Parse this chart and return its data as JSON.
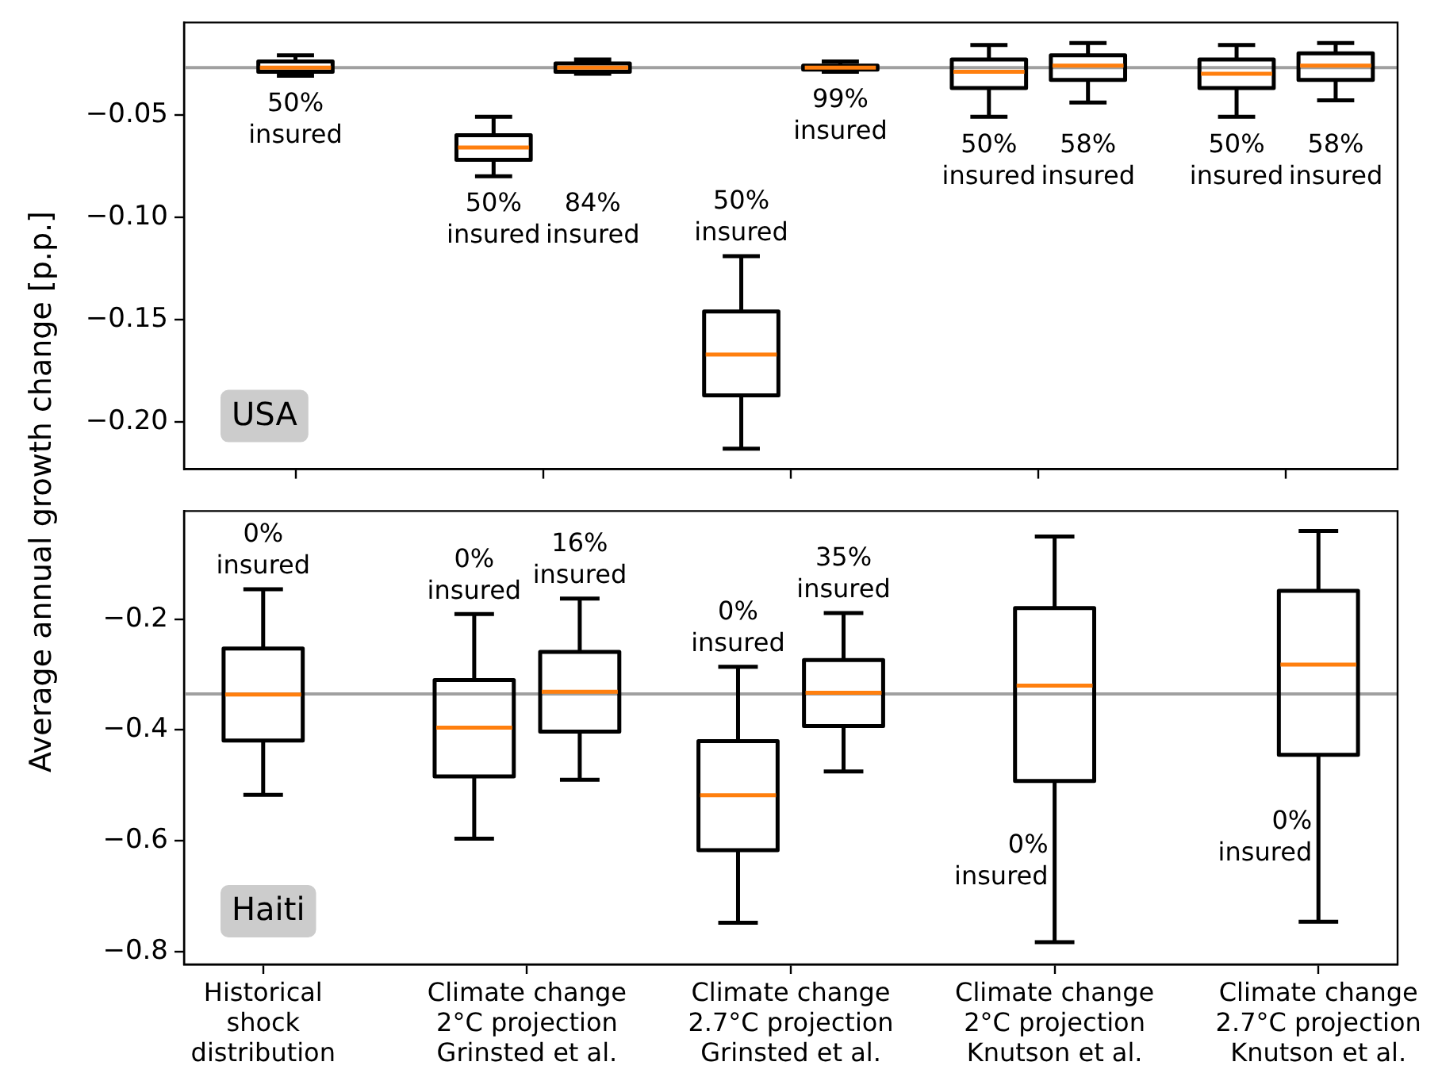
{
  "chart_data": [
    {
      "type": "box",
      "ylabel": "Average annual growth change [p.p.]",
      "categories": [
        null,
        null,
        null,
        null,
        null
      ],
      "ylim": [
        -0.223,
        -0.005
      ],
      "yticks": [
        {
          "value": -0.05,
          "label": "−0.05"
        },
        {
          "value": -0.1,
          "label": "−0.10"
        },
        {
          "value": -0.15,
          "label": "−0.15"
        },
        {
          "value": -0.2,
          "label": "−0.20"
        }
      ],
      "tick_labels": "y",
      "grid": false,
      "ref_lines": [
        {
          "axis": "y",
          "value": -0.027,
          "color": "#a0a0a0"
        }
      ],
      "annotations": [
        "USA"
      ],
      "series": [
        {
          "color": "#000000",
          "value_labels": [
            "50% insured",
            "50% insured",
            "50% insured",
            "50% insured",
            "50% insured"
          ],
          "boxes": [
            {
              "low": -0.031,
              "q1": -0.029,
              "median": -0.027,
              "q3": -0.024,
              "high": -0.021
            },
            {
              "low": -0.08,
              "q1": -0.072,
              "median": -0.066,
              "q3": -0.06,
              "high": -0.051
            },
            {
              "low": -0.213,
              "q1": -0.187,
              "median": -0.167,
              "q3": -0.146,
              "high": -0.119
            },
            {
              "low": -0.051,
              "q1": -0.037,
              "median": -0.029,
              "q3": -0.023,
              "high": -0.016
            },
            {
              "low": -0.051,
              "q1": -0.037,
              "median": -0.03,
              "q3": -0.023,
              "high": -0.016
            }
          ]
        },
        {
          "color": "#000000",
          "value_labels": [
            null,
            "84% insured",
            "99% insured",
            "58% insured",
            "58% insured"
          ],
          "boxes": [
            null,
            {
              "low": -0.03,
              "q1": -0.029,
              "median": -0.027,
              "q3": -0.025,
              "high": -0.023
            },
            {
              "low": -0.029,
              "q1": -0.028,
              "median": -0.027,
              "q3": -0.026,
              "high": -0.024
            },
            {
              "low": -0.044,
              "q1": -0.033,
              "median": -0.026,
              "q3": -0.021,
              "high": -0.015
            },
            {
              "low": -0.043,
              "q1": -0.033,
              "median": -0.026,
              "q3": -0.02,
              "high": -0.015
            }
          ]
        }
      ]
    },
    {
      "type": "box",
      "categories": [
        "Historical\nshock\ndistribution",
        "Climate change\n2°C projection\nGrinsted et al.",
        "Climate change\n2.7°C projection\nGrinsted et al.",
        "Climate change\n2°C projection\nKnutson et al.",
        "Climate change\n2.7°C projection\nKnutson et al."
      ],
      "ylim": [
        -0.823,
        -0.005
      ],
      "yticks": [
        {
          "value": -0.2,
          "label": "−0.2"
        },
        {
          "value": -0.4,
          "label": "−0.4"
        },
        {
          "value": -0.6,
          "label": "−0.6"
        },
        {
          "value": -0.8,
          "label": "−0.8"
        }
      ],
      "grid": false,
      "ref_lines": [
        {
          "axis": "y",
          "value": -0.335,
          "color": "#a0a0a0"
        }
      ],
      "annotations": [
        "Haiti"
      ],
      "series": [
        {
          "color": "#000000",
          "value_labels": [
            "0% insured",
            "0% insured",
            "0% insured",
            "0% insured",
            "0% insured"
          ],
          "boxes": [
            {
              "low": -0.517,
              "q1": -0.419,
              "median": -0.336,
              "q3": -0.253,
              "high": -0.146
            },
            {
              "low": -0.596,
              "q1": -0.484,
              "median": -0.396,
              "q3": -0.31,
              "high": -0.191
            },
            {
              "low": -0.748,
              "q1": -0.617,
              "median": -0.518,
              "q3": -0.42,
              "high": -0.286
            },
            {
              "low": -0.783,
              "q1": -0.492,
              "median": -0.32,
              "q3": -0.18,
              "high": -0.051
            },
            {
              "low": -0.746,
              "q1": -0.445,
              "median": -0.282,
              "q3": -0.149,
              "high": -0.041
            }
          ]
        },
        {
          "color": "#000000",
          "value_labels": [
            null,
            "16% insured",
            "35% insured",
            null,
            null
          ],
          "boxes": [
            null,
            {
              "low": -0.49,
              "q1": -0.403,
              "median": -0.331,
              "q3": -0.259,
              "high": -0.163
            },
            {
              "low": -0.475,
              "q1": -0.393,
              "median": -0.333,
              "q3": -0.274,
              "high": -0.189
            },
            null,
            null
          ]
        }
      ]
    }
  ]
}
